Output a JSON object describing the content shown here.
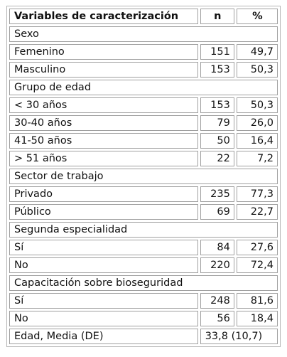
{
  "header": {
    "variable": "Variables de caracterización",
    "n": "n",
    "pct": "%"
  },
  "rows": [
    {
      "type": "section",
      "label": "Sexo"
    },
    {
      "type": "data",
      "label": "Femenino",
      "n": "151",
      "pct": "49,7"
    },
    {
      "type": "data",
      "label": "Masculino",
      "n": "153",
      "pct": "50,3"
    },
    {
      "type": "section",
      "label": "Grupo de edad"
    },
    {
      "type": "data",
      "label": "< 30 años",
      "n": "153",
      "pct": "50,3"
    },
    {
      "type": "data",
      "label": "30-40 años",
      "n": "79",
      "pct": "26,0"
    },
    {
      "type": "data",
      "label": "41-50 años",
      "n": "50",
      "pct": "16,4"
    },
    {
      "type": "data",
      "label": "> 51 años",
      "n": "22",
      "pct": "7,2"
    },
    {
      "type": "section",
      "label": "Sector de trabajo"
    },
    {
      "type": "data",
      "label": "Privado",
      "n": "235",
      "pct": "77,3"
    },
    {
      "type": "data",
      "label": "Público",
      "n": "69",
      "pct": "22,7"
    },
    {
      "type": "section",
      "label": "Segunda especialidad"
    },
    {
      "type": "data",
      "label": "Sí",
      "n": "84",
      "pct": "27,6"
    },
    {
      "type": "data",
      "label": "No",
      "n": "220",
      "pct": "72,4"
    },
    {
      "type": "section",
      "label": "Capacitación sobre bioseguridad"
    },
    {
      "type": "data",
      "label": "Sí",
      "n": "248",
      "pct": "81,6"
    },
    {
      "type": "data",
      "label": "No",
      "n": "56",
      "pct": "18,4"
    },
    {
      "type": "merged",
      "label": "Edad, Media (DE)",
      "value": "33,8 (10,7)"
    }
  ]
}
